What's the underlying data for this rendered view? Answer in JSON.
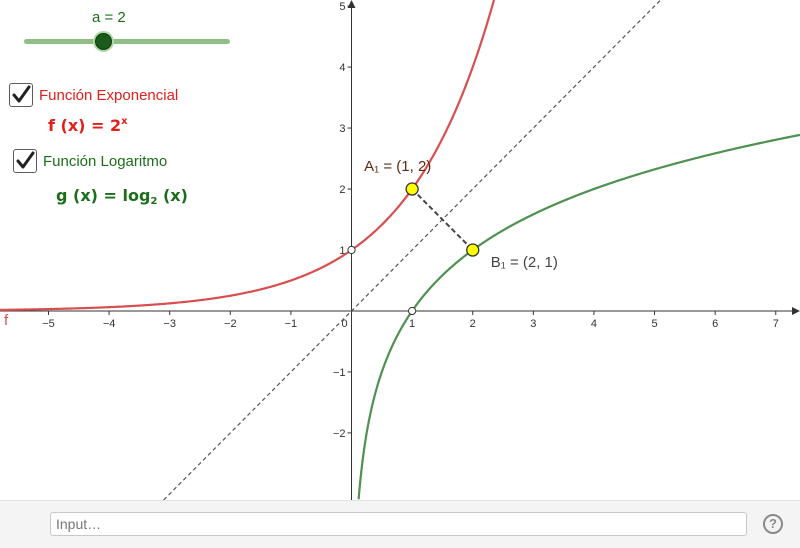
{
  "slider": {
    "label": "a = 2",
    "min": -5,
    "max": 5,
    "value": 2,
    "color": "#8fbf86"
  },
  "checkbox_exp": {
    "label": "Función Exponencial",
    "checked": true,
    "color": "#e1201b"
  },
  "checkbox_log": {
    "label": "Función Logaritmo",
    "checked": true,
    "color": "#1b6f1b"
  },
  "formula_f": {
    "lhs": "f (x)  =  2",
    "exp": "x",
    "color": "#e1201b"
  },
  "formula_g": {
    "lhs": "g (x)  =  log",
    "base": "2",
    "rhs": " (x)",
    "color": "#1b6f1b"
  },
  "chart_data": {
    "type": "line",
    "xlim": [
      -5.8,
      7.4
    ],
    "ylim": [
      -3.1,
      5.1
    ],
    "x_ticks": [
      "−5",
      "−4",
      "−3",
      "−2",
      "−1",
      "0",
      "1",
      "2",
      "3",
      "4",
      "5",
      "6",
      "7"
    ],
    "y_ticks": [
      "−2",
      "−1",
      "1",
      "2",
      "3",
      "4",
      "5"
    ],
    "grid": false,
    "series": [
      {
        "name": "f",
        "function": "2^x",
        "color": "#d94f4f"
      },
      {
        "name": "",
        "function": "log2(x)",
        "color": "#4e9150"
      },
      {
        "name": "",
        "function": "y = x",
        "color": "#555555"
      }
    ],
    "points": [
      {
        "label": "A₁ = (1, 2)",
        "x": 1,
        "y": 2,
        "color": "#ffff00"
      },
      {
        "label": "B₁ = (2, 1)",
        "x": 2,
        "y": 1,
        "color": "#ffff00"
      },
      {
        "label": "",
        "x": 0,
        "y": 1,
        "color": "#ffffff"
      },
      {
        "label": "",
        "x": 1,
        "y": 0,
        "color": "#ffffff"
      }
    ]
  },
  "input_bar": {
    "placeholder": "Input…",
    "help_label": "?"
  }
}
